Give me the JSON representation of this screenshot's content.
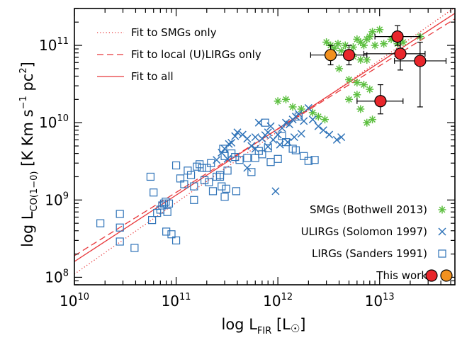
{
  "chart_data": {
    "type": "scatter",
    "x_scale": "log",
    "y_scale": "log",
    "xlim": [
      10000000000.0,
      55000000000000.0
    ],
    "ylim": [
      80000000.0,
      300000000000.0
    ],
    "xlabel": {
      "main": "log L",
      "sub": "FIR",
      "tail": "[L",
      "sun": "☉",
      "end": "]"
    },
    "ylabel": {
      "main": "log L",
      "sub": "CO(1−0)",
      "tail": "[K Km s",
      "sup1": "−1",
      "mid": " pc",
      "sup2": "2",
      "end": "]"
    },
    "x_ticks": [
      {
        "value": 10000000000.0,
        "base": "10",
        "exp": "10"
      },
      {
        "value": 100000000000.0,
        "base": "10",
        "exp": "11"
      },
      {
        "value": 1000000000000.0,
        "base": "10",
        "exp": "12"
      },
      {
        "value": 10000000000000.0,
        "base": "10",
        "exp": "13"
      }
    ],
    "y_ticks": [
      {
        "value": 100000000.0,
        "base": "10",
        "exp": "8"
      },
      {
        "value": 1000000000.0,
        "base": "10",
        "exp": "9"
      },
      {
        "value": 10000000000.0,
        "base": "10",
        "exp": "10"
      },
      {
        "value": 100000000000.0,
        "base": "10",
        "exp": "11"
      }
    ],
    "colors": {
      "fit": "#e8383b",
      "smg": "#5cbf3f",
      "ulirg": "#2f73b8",
      "lirg": "#2f73b8",
      "thiswork_red": "#e8262b",
      "thiswork_orange": "#f2911f"
    },
    "fits": [
      {
        "name": "Fit to SMGs only",
        "style": "dotted",
        "points": [
          [
            10000000000.0,
            110000000.0
          ],
          [
            55000000000000.0,
            310000000000.0
          ]
        ]
      },
      {
        "name": "Fit to local (U)LIRGs only",
        "style": "dashed",
        "points": [
          [
            10000000000.0,
            190000000.0
          ],
          [
            55000000000000.0,
            220000000000.0
          ]
        ]
      },
      {
        "name": "Fit to all",
        "style": "solid",
        "points": [
          [
            10000000000.0,
            160000000.0
          ],
          [
            55000000000000.0,
            260000000000.0
          ]
        ]
      }
    ],
    "series": [
      {
        "name": "SMGs (Bothwell 2013)",
        "marker": "asterisk",
        "points": [
          [
            3000000000000.0,
            110000000000.0
          ],
          [
            3300000000000.0,
            100000000000.0
          ],
          [
            3600000000000.0,
            92000000000.0
          ],
          [
            3900000000000.0,
            105000000000.0
          ],
          [
            4200000000000.0,
            85000000000.0
          ],
          [
            4600000000000.0,
            100000000000.0
          ],
          [
            5000000000000.0,
            80000000000.0
          ],
          [
            5500000000000.0,
            95000000000.0
          ],
          [
            6000000000000.0,
            120000000000.0
          ],
          [
            6500000000000.0,
            110000000000.0
          ],
          [
            7000000000000.0,
            100000000000.0
          ],
          [
            7500000000000.0,
            120000000000.0
          ],
          [
            8000000000000.0,
            130000000000.0
          ],
          [
            8500000000000.0,
            150000000000.0
          ],
          [
            9000000000000.0,
            100000000000.0
          ],
          [
            10000000000000.0,
            160000000000.0
          ],
          [
            11000000000000.0,
            105000000000.0
          ],
          [
            13000000000000.0,
            120000000000.0
          ],
          [
            15000000000000.0,
            105000000000.0
          ],
          [
            17000000000000.0,
            110000000000.0
          ],
          [
            25000000000000.0,
            130000000000.0
          ],
          [
            5500000000000.0,
            72000000000.0
          ],
          [
            6500000000000.0,
            65000000000.0
          ],
          [
            7500000000000.0,
            65000000000.0
          ],
          [
            4000000000000.0,
            50000000000.0
          ],
          [
            5000000000000.0,
            36000000000.0
          ],
          [
            6000000000000.0,
            33000000000.0
          ],
          [
            7000000000000.0,
            31000000000.0
          ],
          [
            5000000000000.0,
            20000000000.0
          ],
          [
            6000000000000.0,
            23000000000.0
          ],
          [
            8000000000000.0,
            27000000000.0
          ],
          [
            2200000000000.0,
            13500000000.0
          ],
          [
            2500000000000.0,
            12000000000.0
          ],
          [
            2900000000000.0,
            11000000000.0
          ],
          [
            6500000000000.0,
            15000000000.0
          ],
          [
            7500000000000.0,
            10000000000.0
          ],
          [
            8500000000000.0,
            11000000000.0
          ],
          [
            1000000000000.0,
            19000000000.0
          ],
          [
            1200000000000.0,
            20000000000.0
          ],
          [
            1400000000000.0,
            16000000000.0
          ],
          [
            1700000000000.0,
            15000000000.0
          ]
        ]
      },
      {
        "name": "ULIRGs (Solomon 1997)",
        "marker": "cross",
        "points": [
          [
            250000000000.0,
            3300000000.0
          ],
          [
            280000000000.0,
            4100000000.0
          ],
          [
            300000000000.0,
            4600000000.0
          ],
          [
            320000000000.0,
            3400000000.0
          ],
          [
            350000000000.0,
            5500000000.0
          ],
          [
            380000000000.0,
            6700000000.0
          ],
          [
            400000000000.0,
            7500000000.0
          ],
          [
            450000000000.0,
            7000000000.0
          ],
          [
            500000000000.0,
            6200000000.0
          ],
          [
            550000000000.0,
            5000000000.0
          ],
          [
            600000000000.0,
            6500000000.0
          ],
          [
            650000000000.0,
            10000000000.0
          ],
          [
            700000000000.0,
            6200000000.0
          ],
          [
            750000000000.0,
            6900000000.0
          ],
          [
            800000000000.0,
            7500000000.0
          ],
          [
            850000000000.0,
            9000000000.0
          ],
          [
            900000000000.0,
            6000000000.0
          ],
          [
            1000000000000.0,
            7000000000.0
          ],
          [
            1100000000000.0,
            8500000000.0
          ],
          [
            1200000000000.0,
            10000000000.0
          ],
          [
            1300000000000.0,
            9500000000.0
          ],
          [
            1400000000000.0,
            11000000000.0
          ],
          [
            1500000000000.0,
            12000000000.0
          ],
          [
            1600000000000.0,
            13000000000.0
          ],
          [
            1800000000000.0,
            10500000000.0
          ],
          [
            2000000000000.0,
            15500000000.0
          ],
          [
            2200000000000.0,
            11000000000.0
          ],
          [
            2500000000000.0,
            9000000000.0
          ],
          [
            2800000000000.0,
            8000000000.0
          ],
          [
            3200000000000.0,
            7000000000.0
          ],
          [
            3800000000000.0,
            6000000000.0
          ],
          [
            4200000000000.0,
            6500000000.0
          ],
          [
            1050000000000.0,
            5200000000.0
          ],
          [
            1250000000000.0,
            5600000000.0
          ],
          [
            1450000000000.0,
            6500000000.0
          ],
          [
            1700000000000.0,
            7200000000.0
          ],
          [
            330000000000.0,
            5300000000.0
          ],
          [
            600000000000.0,
            4600000000.0
          ],
          [
            800000000000.0,
            4900000000.0
          ],
          [
            500000000000.0,
            2600000000.0
          ],
          [
            950000000000.0,
            1300000000.0
          ]
        ]
      },
      {
        "name": "LIRGs (Sanders 1991)",
        "marker": "square",
        "points": [
          [
            18000000000.0,
            500000000.0
          ],
          [
            28000000000.0,
            660000000.0
          ],
          [
            28000000000.0,
            440000000.0
          ],
          [
            28000000000.0,
            290000000.0
          ],
          [
            39000000000.0,
            240000000.0
          ],
          [
            56000000000.0,
            2000000000.0
          ],
          [
            58000000000.0,
            550000000.0
          ],
          [
            60000000000.0,
            1250000000.0
          ],
          [
            65000000000.0,
            680000000.0
          ],
          [
            70000000000.0,
            750000000.0
          ],
          [
            73000000000.0,
            850000000.0
          ],
          [
            76000000000.0,
            900000000.0
          ],
          [
            79000000000.0,
            950000000.0
          ],
          [
            82000000000.0,
            700000000.0
          ],
          [
            85000000000.0,
            900000000.0
          ],
          [
            80000000000.0,
            390000000.0
          ],
          [
            90000000000.0,
            360000000.0
          ],
          [
            100000000000.0,
            300000000.0
          ],
          [
            100000000000.0,
            2800000000.0
          ],
          [
            110000000000.0,
            1900000000.0
          ],
          [
            120000000000.0,
            1600000000.0
          ],
          [
            130000000000.0,
            2400000000.0
          ],
          [
            140000000000.0,
            2100000000.0
          ],
          [
            150000000000.0,
            1000000000.0
          ],
          [
            150000000000.0,
            1500000000.0
          ],
          [
            160000000000.0,
            2700000000.0
          ],
          [
            170000000000.0,
            2900000000.0
          ],
          [
            180000000000.0,
            2600000000.0
          ],
          [
            190000000000.0,
            1800000000.0
          ],
          [
            200000000000.0,
            2600000000.0
          ],
          [
            210000000000.0,
            1700000000.0
          ],
          [
            220000000000.0,
            3000000000.0
          ],
          [
            230000000000.0,
            1300000000.0
          ],
          [
            250000000000.0,
            2000000000.0
          ],
          [
            270000000000.0,
            2100000000.0
          ],
          [
            290000000000.0,
            4600000000.0
          ],
          [
            300000000000.0,
            3700000000.0
          ],
          [
            320000000000.0,
            2400000000.0
          ],
          [
            350000000000.0,
            4000000000.0
          ],
          [
            270000000000.0,
            2000000000.0
          ],
          [
            300000000000.0,
            1100000000.0
          ],
          [
            310000000000.0,
            1400000000.0
          ],
          [
            390000000000.0,
            1300000000.0
          ],
          [
            420000000000.0,
            3300000000.0
          ],
          [
            500000000000.0,
            3500000000.0
          ],
          [
            550000000000.0,
            2300000000.0
          ],
          [
            600000000000.0,
            3500000000.0
          ],
          [
            650000000000.0,
            4300000000.0
          ],
          [
            700000000000.0,
            3900000000.0
          ],
          [
            750000000000.0,
            10000000000.0
          ],
          [
            800000000000.0,
            4700000000.0
          ],
          [
            850000000000.0,
            3100000000.0
          ],
          [
            1000000000000.0,
            3400000000.0
          ],
          [
            1100000000000.0,
            6700000000.0
          ],
          [
            1200000000000.0,
            5600000000.0
          ],
          [
            1400000000000.0,
            4600000000.0
          ],
          [
            1600000000000.0,
            12000000000.0
          ],
          [
            1800000000000.0,
            3700000000.0
          ],
          [
            2000000000000.0,
            3200000000.0
          ],
          [
            2300000000000.0,
            3300000000.0
          ],
          [
            1500000000000.0,
            4400000000.0
          ],
          [
            280000000000.0,
            1500000000.0
          ],
          [
            380000000000.0,
            3600000000.0
          ]
        ]
      },
      {
        "name": "This work",
        "marker": "circle",
        "points": [
          {
            "x": 3300000000000.0,
            "y": 75000000000.0,
            "color": "orange",
            "xerr": [
              2100000000000.0,
              5000000000000.0
            ],
            "yerr": [
              56000000000.0,
              100000000000.0
            ]
          },
          {
            "x": 5000000000000.0,
            "y": 75000000000.0,
            "color": "red",
            "xerr": [
              3300000000000.0,
              7500000000000.0
            ],
            "yerr": [
              56000000000.0,
              100000000000.0
            ]
          },
          {
            "x": 15000000000000.0,
            "y": 130000000000.0,
            "color": "red",
            "xerr": [
              9000000000000.0,
              25000000000000.0
            ],
            "yerr": [
              100000000000.0,
              180000000000.0
            ]
          },
          {
            "x": 16000000000000.0,
            "y": 78000000000.0,
            "color": "red",
            "xerr": [
              7000000000000.0,
              28000000000000.0
            ],
            "yerr": [
              48000000000.0,
              130000000000.0
            ]
          },
          {
            "x": 25000000000000.0,
            "y": 63000000000.0,
            "color": "red",
            "xerr": [
              14000000000000.0,
              45000000000000.0
            ],
            "yerr": [
              16000000000.0,
              110000000000.0
            ]
          },
          {
            "x": 10200000000000.0,
            "y": 19000000000.0,
            "color": "red",
            "xerr": [
              6000000000000.0,
              17000000000000.0
            ],
            "yerr": [
              13000000000.0,
              31000000000.0
            ]
          }
        ]
      }
    ],
    "legend_top": [
      "Fit to SMGs only",
      "Fit to local (U)LIRGs only",
      "Fit to all"
    ],
    "legend_bottom": [
      "SMGs (Bothwell 2013)",
      "ULIRGs (Solomon 1997)",
      "LIRGs (Sanders 1991)",
      "This work"
    ],
    "grid": false
  }
}
